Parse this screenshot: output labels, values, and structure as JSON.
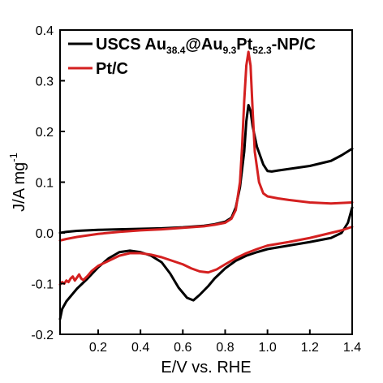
{
  "chart_data": {
    "type": "line",
    "xlabel": "E/V vs. RHE",
    "ylabel": "J/A mg",
    "ylabel_superscript": "-1",
    "xlim": [
      0.02,
      1.4
    ],
    "ylim": [
      -0.2,
      0.4
    ],
    "x_ticks": [
      0.2,
      0.4,
      0.6,
      0.8,
      1.0,
      1.2,
      1.4
    ],
    "x_tick_labels": [
      "0.2",
      "0.4",
      "0.6",
      "0.8",
      "1.0",
      "1.2",
      "1.4"
    ],
    "y_ticks": [
      -0.2,
      -0.1,
      0.0,
      0.1,
      0.2,
      0.3,
      0.4
    ],
    "y_tick_labels": [
      "-0.2",
      "-0.1",
      "0.0",
      "0.1",
      "0.2",
      "0.3",
      "0.4"
    ],
    "grid": false,
    "legend_position": "top-left",
    "series": [
      {
        "name": "USCS Au38.4@Au9.3Pt52.3-NP/C",
        "legend": {
          "parts": [
            {
              "text": "USCS Au",
              "sub": false
            },
            {
              "text": "38.4",
              "sub": true
            },
            {
              "text": "@Au",
              "sub": false
            },
            {
              "text": "9.3",
              "sub": true
            },
            {
              "text": "Pt",
              "sub": false
            },
            {
              "text": "52.3",
              "sub": true
            },
            {
              "text": "-NP/C",
              "sub": false
            }
          ]
        },
        "color": "#000000",
        "anodic": {
          "x": [
            0.02,
            0.05,
            0.1,
            0.2,
            0.3,
            0.4,
            0.5,
            0.6,
            0.7,
            0.75,
            0.8,
            0.83,
            0.85,
            0.87,
            0.89,
            0.9,
            0.91,
            0.92,
            0.93,
            0.95,
            0.98,
            1.0,
            1.02,
            1.05,
            1.1,
            1.2,
            1.3,
            1.35,
            1.4
          ],
          "y": [
            0.0,
            0.002,
            0.004,
            0.006,
            0.007,
            0.008,
            0.009,
            0.011,
            0.014,
            0.017,
            0.022,
            0.03,
            0.05,
            0.09,
            0.16,
            0.22,
            0.252,
            0.24,
            0.21,
            0.17,
            0.135,
            0.122,
            0.121,
            0.123,
            0.126,
            0.132,
            0.142,
            0.153,
            0.166
          ]
        },
        "cathodic": {
          "x": [
            1.4,
            1.38,
            1.35,
            1.3,
            1.2,
            1.1,
            1.0,
            0.95,
            0.9,
            0.85,
            0.8,
            0.75,
            0.72,
            0.68,
            0.65,
            0.62,
            0.58,
            0.54,
            0.5,
            0.45,
            0.4,
            0.35,
            0.3,
            0.25,
            0.2,
            0.15,
            0.1,
            0.07,
            0.05,
            0.03,
            0.02
          ],
          "y": [
            0.05,
            0.02,
            0.0,
            -0.01,
            -0.018,
            -0.025,
            -0.032,
            -0.038,
            -0.045,
            -0.055,
            -0.07,
            -0.09,
            -0.105,
            -0.122,
            -0.133,
            -0.128,
            -0.108,
            -0.08,
            -0.058,
            -0.045,
            -0.038,
            -0.035,
            -0.038,
            -0.05,
            -0.068,
            -0.09,
            -0.11,
            -0.125,
            -0.135,
            -0.15,
            -0.17
          ]
        }
      },
      {
        "name": "Pt/C",
        "legend": {
          "parts": [
            {
              "text": "Pt/C",
              "sub": false
            }
          ]
        },
        "color": "#d42020",
        "anodic": {
          "x": [
            0.02,
            0.05,
            0.1,
            0.2,
            0.3,
            0.4,
            0.5,
            0.6,
            0.7,
            0.75,
            0.8,
            0.83,
            0.85,
            0.87,
            0.88,
            0.89,
            0.9,
            0.91,
            0.92,
            0.93,
            0.94,
            0.96,
            0.98,
            1.0,
            1.05,
            1.1,
            1.2,
            1.3,
            1.4
          ],
          "y": [
            -0.015,
            -0.012,
            -0.008,
            -0.002,
            0.002,
            0.005,
            0.007,
            0.01,
            0.013,
            0.016,
            0.02,
            0.028,
            0.045,
            0.1,
            0.17,
            0.26,
            0.33,
            0.357,
            0.33,
            0.24,
            0.16,
            0.1,
            0.078,
            0.072,
            0.068,
            0.065,
            0.06,
            0.058,
            0.06
          ]
        },
        "cathodic": {
          "x": [
            1.4,
            1.35,
            1.3,
            1.2,
            1.1,
            1.0,
            0.95,
            0.9,
            0.85,
            0.8,
            0.76,
            0.72,
            0.68,
            0.64,
            0.6,
            0.55,
            0.5,
            0.45,
            0.4,
            0.35,
            0.3,
            0.25,
            0.2,
            0.17,
            0.15,
            0.13,
            0.12,
            0.11,
            0.1,
            0.09,
            0.08,
            0.07,
            0.06,
            0.05,
            0.04,
            0.03,
            0.02
          ],
          "y": [
            0.012,
            0.005,
            0.0,
            -0.01,
            -0.018,
            -0.025,
            -0.032,
            -0.04,
            -0.05,
            -0.062,
            -0.072,
            -0.078,
            -0.076,
            -0.07,
            -0.062,
            -0.055,
            -0.048,
            -0.043,
            -0.04,
            -0.04,
            -0.045,
            -0.055,
            -0.065,
            -0.075,
            -0.085,
            -0.093,
            -0.09,
            -0.082,
            -0.088,
            -0.094,
            -0.086,
            -0.09,
            -0.097,
            -0.094,
            -0.1,
            -0.097,
            -0.102
          ]
        }
      }
    ]
  }
}
